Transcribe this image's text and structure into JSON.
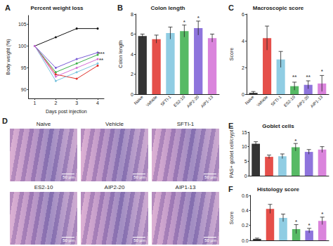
{
  "chart_data": [
    {
      "panel": "A",
      "type": "line",
      "title": "Percent weight loss",
      "x_label": "Days post injection",
      "y_label": "Body weight (%)",
      "x": [
        1,
        2,
        3,
        4
      ],
      "xlim": [
        0.7,
        4.3
      ],
      "xticks": [
        1,
        2,
        3,
        4
      ],
      "ylim": [
        88,
        107
      ],
      "yticks": [
        90,
        95,
        100,
        105
      ],
      "marker": "circle",
      "series": [
        {
          "name": "Naive",
          "color": "#111111",
          "values": [
            100,
            102,
            104,
            104
          ]
        },
        {
          "name": "Vehicle",
          "color": "#e0302a",
          "values": [
            100,
            93.5,
            92.5,
            95.5
          ]
        },
        {
          "name": "SFTI-1",
          "color": "#7cc4de",
          "values": [
            100,
            92,
            94,
            96
          ]
        },
        {
          "name": "ES2-10",
          "color": "#3aae4a",
          "values": [
            100,
            94,
            96,
            98
          ]
        },
        {
          "name": "AIP2-20",
          "color": "#7a5cd6",
          "values": [
            100,
            95,
            97,
            98.5
          ]
        },
        {
          "name": "AIP1-13",
          "color": "#d46fd6",
          "values": [
            100,
            93,
            95,
            97
          ]
        }
      ],
      "annotations": [
        {
          "text": "***",
          "x": 4.17,
          "y": 98.3
        },
        {
          "text": "**",
          "x": 4.17,
          "y": 96.8
        }
      ]
    },
    {
      "panel": "B",
      "type": "bar",
      "title": "Colon length",
      "y_label": "Colon length",
      "categories": [
        "Naive",
        "Vehicle",
        "SFTI-1",
        "ES2-10",
        "AIP2-20",
        "AIP1-13"
      ],
      "values": [
        5.8,
        5.5,
        6.1,
        6.3,
        6.6,
        5.6
      ],
      "errors": [
        0.2,
        0.4,
        0.6,
        0.6,
        0.7,
        0.4
      ],
      "colors": [
        "#111111",
        "#e0302a",
        "#7cc4de",
        "#3aae4a",
        "#7a5cd6",
        "#d46fd6"
      ],
      "ylim": [
        0,
        8
      ],
      "yticks": [
        0,
        2,
        4,
        6,
        8
      ],
      "annotations": [
        {
          "text": "*",
          "x": "ES2-10",
          "y": 7.2
        },
        {
          "text": "*",
          "x": "AIP2-20",
          "y": 7.6
        }
      ]
    },
    {
      "panel": "C",
      "type": "bar",
      "title": "Macroscopic score",
      "y_label": "Score",
      "categories": [
        "Naive",
        "Vehicle",
        "SFTI-1",
        "ES2-10",
        "AIP2-20",
        "AIP1-13"
      ],
      "values": [
        0.1,
        4.2,
        2.6,
        0.6,
        0.7,
        0.8
      ],
      "errors": [
        0.1,
        0.9,
        0.6,
        0.3,
        0.3,
        0.6
      ],
      "colors": [
        "#111111",
        "#e0302a",
        "#7cc4de",
        "#3aae4a",
        "#7a5cd6",
        "#d46fd6"
      ],
      "ylim": [
        0,
        6
      ],
      "yticks": [
        0,
        2,
        4,
        6
      ],
      "annotations": [
        {
          "text": "**",
          "x": "ES2-10",
          "y": 1.3
        },
        {
          "text": "**",
          "x": "AIP2-20",
          "y": 1.3
        },
        {
          "text": "*",
          "x": "AIP1-13",
          "y": 1.7
        }
      ]
    },
    {
      "panel": "E",
      "type": "bar",
      "title": "Goblet cells",
      "y_label": "PAS+ goblet cell/crypt",
      "categories": [
        "Naive",
        "Vehicle",
        "SFTI-1",
        "ES2-10",
        "AIP2-20",
        "AIP1-13"
      ],
      "values": [
        11,
        6.5,
        6.7,
        9.8,
        8.2,
        9
      ],
      "errors": [
        0.7,
        0.6,
        0.8,
        1.3,
        0.8,
        1
      ],
      "colors": [
        "#111111",
        "#e0302a",
        "#7cc4de",
        "#3aae4a",
        "#7a5cd6",
        "#d46fd6"
      ],
      "ylim": [
        0,
        15
      ],
      "yticks": [
        0,
        5,
        10,
        15
      ],
      "tick_labels": "y",
      "annotations": [
        {
          "text": "*",
          "x": "ES2-10",
          "y": 12
        }
      ]
    },
    {
      "panel": "F",
      "type": "bar",
      "title": "Histology score",
      "y_label": "Score",
      "categories": [
        "Naive",
        "Vehicle",
        "SFTI-1",
        "ES2-10",
        "AIP2-20",
        "AIP1-13"
      ],
      "values": [
        0.02,
        0.42,
        0.3,
        0.15,
        0.13,
        0.26
      ],
      "errors": [
        0.01,
        0.06,
        0.05,
        0.06,
        0.03,
        0.05
      ],
      "colors": [
        "#111111",
        "#e0302a",
        "#7cc4de",
        "#3aae4a",
        "#7a5cd6",
        "#d46fd6"
      ],
      "ylim": [
        0,
        0.6
      ],
      "yticks": [
        {
          "value": 0,
          "label": "0.0"
        },
        {
          "value": 0.2,
          "label": "0.2"
        },
        {
          "value": 0.4,
          "label": "0.4"
        },
        {
          "value": 0.6,
          "label": "0.6"
        }
      ],
      "tick_labels": "y",
      "annotations": [
        {
          "text": "*",
          "x": "ES2-10",
          "y": 0.25
        },
        {
          "text": "*",
          "x": "AIP2-20",
          "y": 0.2
        },
        {
          "text": "*",
          "x": "AIP1-13",
          "y": 0.35
        }
      ]
    }
  ],
  "image_panel": {
    "panel": "D",
    "images": [
      {
        "title": "Naive",
        "scale_bar": "50 µm"
      },
      {
        "title": "Vehicle",
        "scale_bar": "50 µm"
      },
      {
        "title": "SFTI-1",
        "scale_bar": "50 µm"
      },
      {
        "title": "ES2-10",
        "scale_bar": "50 µm"
      },
      {
        "title": "AIP2-20",
        "scale_bar": "50 µm"
      },
      {
        "title": "AIP1-13",
        "scale_bar": "50 µm"
      }
    ]
  }
}
